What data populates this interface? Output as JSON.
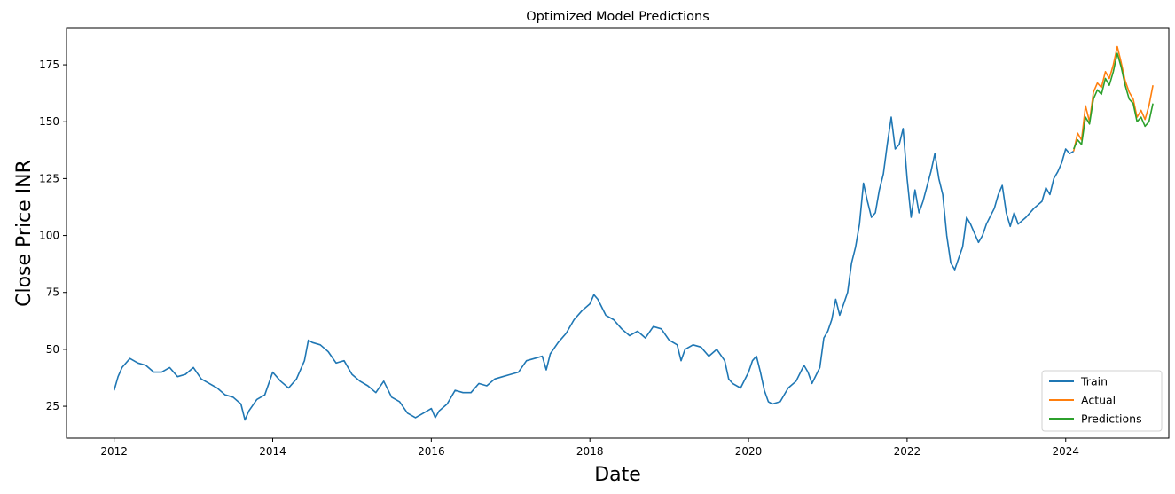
{
  "chart_data": {
    "type": "line",
    "title": "Optimized Model Predictions",
    "xlabel": "Date",
    "ylabel": "Close Price INR",
    "x_ticks": [
      "2012",
      "2014",
      "2016",
      "2018",
      "2020",
      "2022",
      "2024"
    ],
    "y_ticks": [
      "25",
      "50",
      "75",
      "100",
      "125",
      "150",
      "175"
    ],
    "xlim": [
      2011.4,
      2025.3
    ],
    "ylim": [
      11,
      191
    ],
    "grid": false,
    "legend_position": "bottom-right",
    "series": [
      {
        "name": "Train",
        "color": "#1f77b4",
        "points": [
          [
            2012.0,
            32
          ],
          [
            2012.05,
            38
          ],
          [
            2012.1,
            42
          ],
          [
            2012.2,
            46
          ],
          [
            2012.3,
            44
          ],
          [
            2012.4,
            43
          ],
          [
            2012.5,
            40
          ],
          [
            2012.6,
            40
          ],
          [
            2012.7,
            42
          ],
          [
            2012.8,
            38
          ],
          [
            2012.9,
            39
          ],
          [
            2013.0,
            42
          ],
          [
            2013.1,
            37
          ],
          [
            2013.2,
            35
          ],
          [
            2013.3,
            33
          ],
          [
            2013.4,
            30
          ],
          [
            2013.5,
            29
          ],
          [
            2013.6,
            26
          ],
          [
            2013.65,
            19
          ],
          [
            2013.7,
            23
          ],
          [
            2013.8,
            28
          ],
          [
            2013.9,
            30
          ],
          [
            2014.0,
            40
          ],
          [
            2014.1,
            36
          ],
          [
            2014.2,
            33
          ],
          [
            2014.3,
            37
          ],
          [
            2014.4,
            45
          ],
          [
            2014.45,
            54
          ],
          [
            2014.5,
            53
          ],
          [
            2014.6,
            52
          ],
          [
            2014.7,
            49
          ],
          [
            2014.8,
            44
          ],
          [
            2014.9,
            45
          ],
          [
            2015.0,
            39
          ],
          [
            2015.1,
            36
          ],
          [
            2015.2,
            34
          ],
          [
            2015.3,
            31
          ],
          [
            2015.4,
            36
          ],
          [
            2015.5,
            29
          ],
          [
            2015.6,
            27
          ],
          [
            2015.7,
            22
          ],
          [
            2015.8,
            20
          ],
          [
            2015.9,
            22
          ],
          [
            2016.0,
            24
          ],
          [
            2016.05,
            20
          ],
          [
            2016.1,
            23
          ],
          [
            2016.2,
            26
          ],
          [
            2016.3,
            32
          ],
          [
            2016.4,
            31
          ],
          [
            2016.5,
            31
          ],
          [
            2016.6,
            35
          ],
          [
            2016.7,
            34
          ],
          [
            2016.8,
            37
          ],
          [
            2016.9,
            38
          ],
          [
            2017.0,
            39
          ],
          [
            2017.1,
            40
          ],
          [
            2017.2,
            45
          ],
          [
            2017.3,
            46
          ],
          [
            2017.4,
            47
          ],
          [
            2017.45,
            41
          ],
          [
            2017.5,
            48
          ],
          [
            2017.6,
            53
          ],
          [
            2017.7,
            57
          ],
          [
            2017.8,
            63
          ],
          [
            2017.9,
            67
          ],
          [
            2018.0,
            70
          ],
          [
            2018.05,
            74
          ],
          [
            2018.1,
            72
          ],
          [
            2018.2,
            65
          ],
          [
            2018.3,
            63
          ],
          [
            2018.4,
            59
          ],
          [
            2018.5,
            56
          ],
          [
            2018.6,
            58
          ],
          [
            2018.7,
            55
          ],
          [
            2018.8,
            60
          ],
          [
            2018.9,
            59
          ],
          [
            2019.0,
            54
          ],
          [
            2019.1,
            52
          ],
          [
            2019.15,
            45
          ],
          [
            2019.2,
            50
          ],
          [
            2019.3,
            52
          ],
          [
            2019.4,
            51
          ],
          [
            2019.5,
            47
          ],
          [
            2019.6,
            50
          ],
          [
            2019.7,
            45
          ],
          [
            2019.75,
            37
          ],
          [
            2019.8,
            35
          ],
          [
            2019.9,
            33
          ],
          [
            2020.0,
            40
          ],
          [
            2020.05,
            45
          ],
          [
            2020.1,
            47
          ],
          [
            2020.15,
            40
          ],
          [
            2020.2,
            32
          ],
          [
            2020.25,
            27
          ],
          [
            2020.3,
            26
          ],
          [
            2020.4,
            27
          ],
          [
            2020.5,
            33
          ],
          [
            2020.6,
            36
          ],
          [
            2020.7,
            43
          ],
          [
            2020.75,
            40
          ],
          [
            2020.8,
            35
          ],
          [
            2020.9,
            42
          ],
          [
            2020.95,
            55
          ],
          [
            2021.0,
            58
          ],
          [
            2021.05,
            63
          ],
          [
            2021.1,
            72
          ],
          [
            2021.15,
            65
          ],
          [
            2021.2,
            70
          ],
          [
            2021.25,
            75
          ],
          [
            2021.3,
            88
          ],
          [
            2021.35,
            95
          ],
          [
            2021.4,
            105
          ],
          [
            2021.45,
            123
          ],
          [
            2021.5,
            115
          ],
          [
            2021.55,
            108
          ],
          [
            2021.6,
            110
          ],
          [
            2021.65,
            120
          ],
          [
            2021.7,
            127
          ],
          [
            2021.75,
            140
          ],
          [
            2021.8,
            152
          ],
          [
            2021.85,
            138
          ],
          [
            2021.9,
            140
          ],
          [
            2021.95,
            147
          ],
          [
            2022.0,
            125
          ],
          [
            2022.05,
            108
          ],
          [
            2022.1,
            120
          ],
          [
            2022.15,
            110
          ],
          [
            2022.2,
            115
          ],
          [
            2022.3,
            128
          ],
          [
            2022.35,
            136
          ],
          [
            2022.4,
            125
          ],
          [
            2022.45,
            118
          ],
          [
            2022.5,
            100
          ],
          [
            2022.55,
            88
          ],
          [
            2022.6,
            85
          ],
          [
            2022.65,
            90
          ],
          [
            2022.7,
            95
          ],
          [
            2022.75,
            108
          ],
          [
            2022.8,
            105
          ],
          [
            2022.9,
            97
          ],
          [
            2022.95,
            100
          ],
          [
            2023.0,
            105
          ],
          [
            2023.1,
            112
          ],
          [
            2023.15,
            118
          ],
          [
            2023.2,
            122
          ],
          [
            2023.25,
            110
          ],
          [
            2023.3,
            104
          ],
          [
            2023.35,
            110
          ],
          [
            2023.4,
            105
          ],
          [
            2023.5,
            108
          ],
          [
            2023.6,
            112
          ],
          [
            2023.7,
            115
          ],
          [
            2023.75,
            121
          ],
          [
            2023.8,
            118
          ],
          [
            2023.85,
            125
          ],
          [
            2023.9,
            128
          ],
          [
            2023.95,
            132
          ],
          [
            2024.0,
            138
          ],
          [
            2024.05,
            136
          ],
          [
            2024.1,
            137
          ]
        ]
      },
      {
        "name": "Actual",
        "color": "#ff7f0e",
        "points": [
          [
            2024.1,
            137
          ],
          [
            2024.15,
            145
          ],
          [
            2024.2,
            142
          ],
          [
            2024.25,
            157
          ],
          [
            2024.3,
            150
          ],
          [
            2024.35,
            163
          ],
          [
            2024.4,
            167
          ],
          [
            2024.45,
            165
          ],
          [
            2024.5,
            172
          ],
          [
            2024.55,
            169
          ],
          [
            2024.6,
            175
          ],
          [
            2024.65,
            183
          ],
          [
            2024.7,
            176
          ],
          [
            2024.75,
            168
          ],
          [
            2024.8,
            163
          ],
          [
            2024.85,
            160
          ],
          [
            2024.9,
            152
          ],
          [
            2024.95,
            155
          ],
          [
            2025.0,
            151
          ],
          [
            2025.05,
            157
          ],
          [
            2025.1,
            166
          ]
        ]
      },
      {
        "name": "Predictions",
        "color": "#2ca02c",
        "points": [
          [
            2024.1,
            138
          ],
          [
            2024.15,
            142
          ],
          [
            2024.2,
            140
          ],
          [
            2024.25,
            152
          ],
          [
            2024.3,
            149
          ],
          [
            2024.35,
            160
          ],
          [
            2024.4,
            164
          ],
          [
            2024.45,
            162
          ],
          [
            2024.5,
            169
          ],
          [
            2024.55,
            166
          ],
          [
            2024.6,
            172
          ],
          [
            2024.65,
            180
          ],
          [
            2024.7,
            174
          ],
          [
            2024.75,
            166
          ],
          [
            2024.8,
            160
          ],
          [
            2024.85,
            158
          ],
          [
            2024.9,
            150
          ],
          [
            2024.95,
            152
          ],
          [
            2025.0,
            148
          ],
          [
            2025.05,
            150
          ],
          [
            2025.1,
            158
          ]
        ]
      }
    ]
  }
}
